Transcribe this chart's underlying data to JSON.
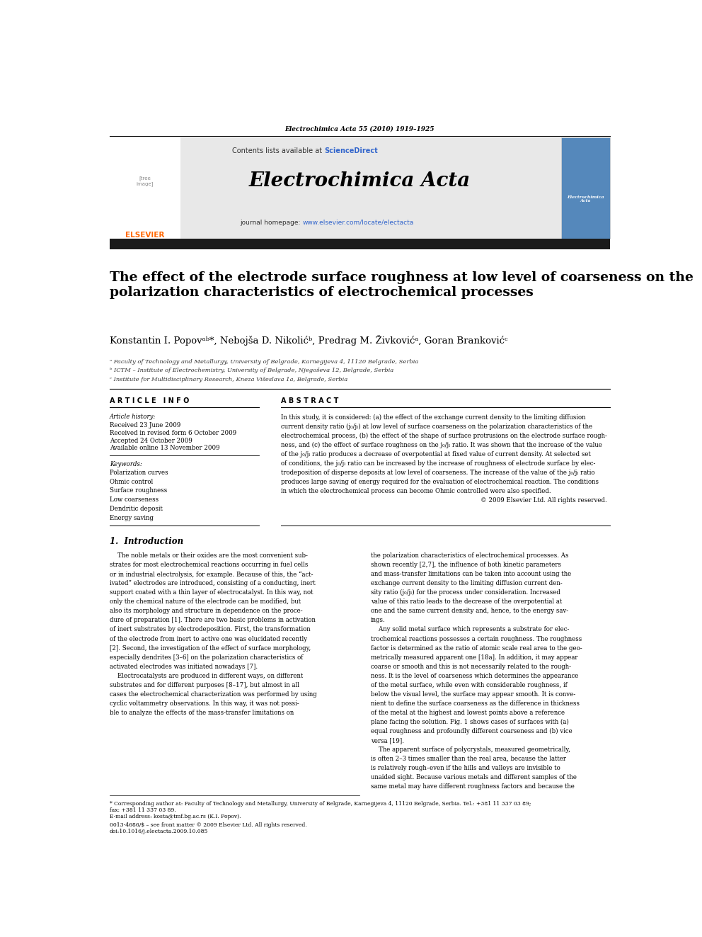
{
  "page_width": 9.92,
  "page_height": 13.23,
  "dpi": 100,
  "bg_color": "#ffffff",
  "journal_header": "Electrochimica Acta 55 (2010) 1919–1925",
  "journal_name": "Electrochimica Acta",
  "sciencedirect_color": "#3366cc",
  "url_color": "#3366cc",
  "header_bg": "#e8e8e8",
  "title": "The effect of the electrode surface roughness at low level of coarseness on the\npolarization characteristics of electrochemical processes",
  "authors": "Konstantin I. Popovᵃᵇ*, Nebojša D. Nikolićᵇ, Predrag M. Živkovićᵃ, Goran Brankovićᶜ",
  "affil_a": "ᵃ Faculty of Technology and Metallurgy, University of Belgrade, Karnegijeva 4, 11120 Belgrade, Serbia",
  "affil_b": "ᵇ ICTM – Institute of Electrochemistry, University of Belgrade, Njegoševa 12, Belgrade, Serbia",
  "affil_c": "ᶜ Institute for Multidisciplinary Research, Kneza Višeslava 1a, Belgrade, Serbia",
  "article_info_header": "A R T I C L E   I N F O",
  "abstract_header": "A B S T R A C T",
  "article_history_label": "Article history:",
  "received": "Received 23 June 2009",
  "revised": "Received in revised form 6 October 2009",
  "accepted": "Accepted 24 October 2009",
  "available": "Available online 13 November 2009",
  "keywords_label": "Keywords:",
  "keywords": [
    "Polarization curves",
    "Ohmic control",
    "Surface roughness",
    "Low coarseness",
    "Dendritic deposit",
    "Energy saving"
  ],
  "copyright": "© 2009 Elsevier Ltd. All rights reserved.",
  "section1_title": "1.  Introduction",
  "footnote_star": "* Corresponding author at: Faculty of Technology and Metallurgy, University of Belgrade, Karnegijeva 4, 11120 Belgrade, Serbia. Tel.: +381 11 337 03 89;",
  "footnote_star2": "fax: +381 11 337 03 89.",
  "footnote_email": "E-mail address: kosta@tmf.bg.ac.rs (K.I. Popov).",
  "bottom_issn": "0013-4686/$ – see front matter © 2009 Elsevier Ltd. All rights reserved.",
  "bottom_doi": "doi:10.1016/j.electacta.2009.10.085",
  "elsevier_orange": "#ff6600",
  "dark_bar_color": "#1a1a1a"
}
